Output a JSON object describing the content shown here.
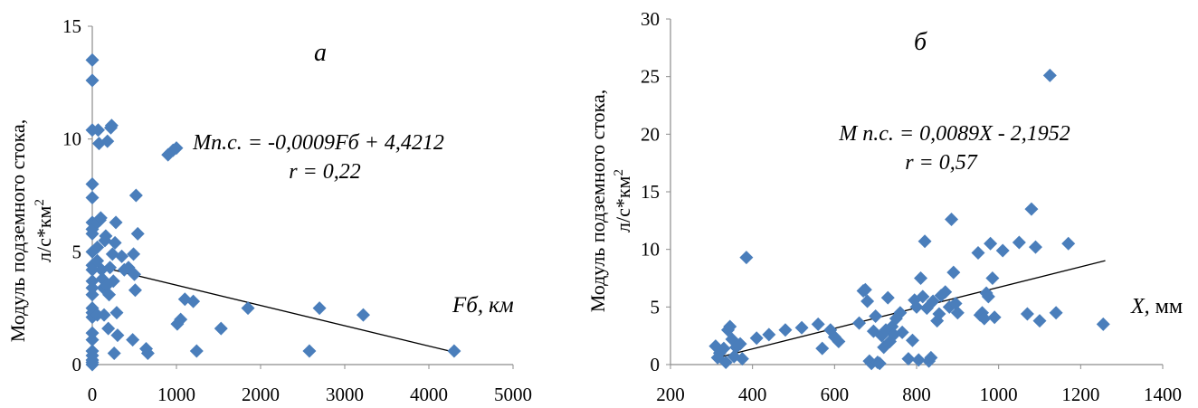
{
  "chart_data": [
    {
      "type": "scatter",
      "panel_label": "а",
      "ylabel": "Модуль подземного стока,",
      "yunit": "л/с*км",
      "yunit_sup": "2",
      "xlabel_italic": "Fб,",
      "xlabel_unit": "км",
      "equation": "Mп.с. = -0,0009Fб + 4,4212",
      "r": "r = 0,22",
      "xlim": [
        0,
        5000
      ],
      "ylim": [
        0,
        15
      ],
      "xticks": [
        "0",
        "1000",
        "2000",
        "3000",
        "4000",
        "5000"
      ],
      "yticks": [
        "0",
        "5",
        "10",
        "15"
      ],
      "color": "#4a7ebb",
      "trendline": {
        "x": [
          0,
          4300
        ],
        "y": [
          4.4212,
          0.55
        ]
      },
      "points": [
        [
          0,
          13.5
        ],
        [
          0,
          12.6
        ],
        [
          0,
          10.4
        ],
        [
          0,
          8.0
        ],
        [
          0,
          7.4
        ],
        [
          0,
          6.3
        ],
        [
          0,
          6.0
        ],
        [
          0,
          5.8
        ],
        [
          0,
          5.0
        ],
        [
          0,
          4.4
        ],
        [
          0,
          4.2
        ],
        [
          0,
          3.7
        ],
        [
          0,
          3.4
        ],
        [
          0,
          3.1
        ],
        [
          0,
          2.5
        ],
        [
          0,
          2.3
        ],
        [
          0,
          2.1
        ],
        [
          0,
          1.4
        ],
        [
          0,
          1.1
        ],
        [
          0,
          0.6
        ],
        [
          0,
          0.4
        ],
        [
          0,
          0.2
        ],
        [
          0,
          0.1
        ],
        [
          0,
          0.0
        ],
        [
          60,
          6.3
        ],
        [
          60,
          5.2
        ],
        [
          60,
          4.6
        ],
        [
          60,
          2.2
        ],
        [
          70,
          10.4
        ],
        [
          80,
          9.8
        ],
        [
          90,
          6.4
        ],
        [
          100,
          6.5
        ],
        [
          110,
          4.2
        ],
        [
          120,
          3.8
        ],
        [
          130,
          3.4
        ],
        [
          140,
          2.2
        ],
        [
          150,
          5.5
        ],
        [
          160,
          5.7
        ],
        [
          170,
          3.5
        ],
        [
          180,
          9.9
        ],
        [
          190,
          1.6
        ],
        [
          200,
          3.1
        ],
        [
          210,
          4.3
        ],
        [
          220,
          10.5
        ],
        [
          230,
          10.6
        ],
        [
          240,
          4.9
        ],
        [
          250,
          3.7
        ],
        [
          260,
          0.5
        ],
        [
          270,
          5.4
        ],
        [
          280,
          6.3
        ],
        [
          290,
          2.3
        ],
        [
          300,
          1.3
        ],
        [
          350,
          4.8
        ],
        [
          380,
          4.2
        ],
        [
          430,
          4.3
        ],
        [
          480,
          1.1
        ],
        [
          490,
          4.9
        ],
        [
          500,
          4.0
        ],
        [
          510,
          3.3
        ],
        [
          520,
          7.5
        ],
        [
          540,
          5.8
        ],
        [
          640,
          0.7
        ],
        [
          660,
          0.5
        ],
        [
          900,
          9.3
        ],
        [
          960,
          9.5
        ],
        [
          1000,
          9.6
        ],
        [
          1010,
          1.8
        ],
        [
          1050,
          2.0
        ],
        [
          1100,
          2.9
        ],
        [
          1200,
          2.8
        ],
        [
          1240,
          0.6
        ],
        [
          1530,
          1.6
        ],
        [
          1850,
          2.5
        ],
        [
          2580,
          0.6
        ],
        [
          2700,
          2.5
        ],
        [
          3220,
          2.2
        ],
        [
          4300,
          0.6
        ]
      ]
    },
    {
      "type": "scatter",
      "panel_label": "б",
      "ylabel": "Модуль подземного стока,",
      "yunit": "л/с*км",
      "yunit_sup": "2",
      "xlabel_italic": "X,",
      "xlabel_unit": "мм",
      "equation": "M п.с. = 0,0089X - 2,1952",
      "r": "r = 0,57",
      "xlim": [
        200,
        1400
      ],
      "ylim": [
        0,
        30
      ],
      "xticks": [
        "200",
        "400",
        "600",
        "800",
        "1000",
        "1200",
        "1400"
      ],
      "yticks": [
        "0",
        "5",
        "10",
        "15",
        "20",
        "25",
        "30"
      ],
      "color": "#4a7ebb",
      "trendline": {
        "x": [
          310,
          1260
        ],
        "y": [
          0.56,
          9.02
        ]
      },
      "points": [
        [
          310,
          1.6
        ],
        [
          315,
          0.6
        ],
        [
          320,
          1.0
        ],
        [
          330,
          1.4
        ],
        [
          335,
          0.2
        ],
        [
          340,
          3.0
        ],
        [
          345,
          3.3
        ],
        [
          350,
          2.2
        ],
        [
          355,
          0.7
        ],
        [
          360,
          1.5
        ],
        [
          370,
          1.8
        ],
        [
          375,
          0.5
        ],
        [
          385,
          9.3
        ],
        [
          410,
          2.3
        ],
        [
          440,
          2.6
        ],
        [
          480,
          3.0
        ],
        [
          520,
          3.2
        ],
        [
          560,
          3.5
        ],
        [
          570,
          1.4
        ],
        [
          590,
          3.0
        ],
        [
          600,
          2.4
        ],
        [
          610,
          2.0
        ],
        [
          660,
          3.6
        ],
        [
          670,
          6.4
        ],
        [
          675,
          6.5
        ],
        [
          680,
          5.5
        ],
        [
          685,
          0.3
        ],
        [
          690,
          0.1
        ],
        [
          695,
          2.9
        ],
        [
          700,
          4.2
        ],
        [
          705,
          0.2
        ],
        [
          710,
          0.1
        ],
        [
          715,
          2.5
        ],
        [
          720,
          1.5
        ],
        [
          725,
          3.0
        ],
        [
          730,
          5.8
        ],
        [
          735,
          2.0
        ],
        [
          740,
          3.3
        ],
        [
          745,
          2.6
        ],
        [
          750,
          4.0
        ],
        [
          760,
          4.5
        ],
        [
          765,
          2.8
        ],
        [
          780,
          0.5
        ],
        [
          790,
          2.1
        ],
        [
          795,
          5.6
        ],
        [
          800,
          5.0
        ],
        [
          805,
          0.4
        ],
        [
          810,
          7.5
        ],
        [
          815,
          5.9
        ],
        [
          820,
          10.7
        ],
        [
          825,
          4.9
        ],
        [
          830,
          0.3
        ],
        [
          835,
          0.6
        ],
        [
          840,
          5.5
        ],
        [
          850,
          3.8
        ],
        [
          855,
          4.4
        ],
        [
          860,
          6.0
        ],
        [
          870,
          6.3
        ],
        [
          880,
          5.0
        ],
        [
          885,
          12.6
        ],
        [
          890,
          8.0
        ],
        [
          895,
          5.3
        ],
        [
          900,
          4.5
        ],
        [
          950,
          9.7
        ],
        [
          955,
          4.3
        ],
        [
          960,
          4.5
        ],
        [
          965,
          4.0
        ],
        [
          970,
          6.2
        ],
        [
          975,
          5.9
        ],
        [
          980,
          10.5
        ],
        [
          985,
          7.5
        ],
        [
          990,
          4.1
        ],
        [
          1010,
          9.9
        ],
        [
          1050,
          10.6
        ],
        [
          1070,
          4.4
        ],
        [
          1080,
          13.5
        ],
        [
          1090,
          10.2
        ],
        [
          1100,
          3.8
        ],
        [
          1125,
          25.1
        ],
        [
          1140,
          4.5
        ],
        [
          1170,
          10.5
        ],
        [
          1255,
          3.5
        ]
      ]
    }
  ]
}
